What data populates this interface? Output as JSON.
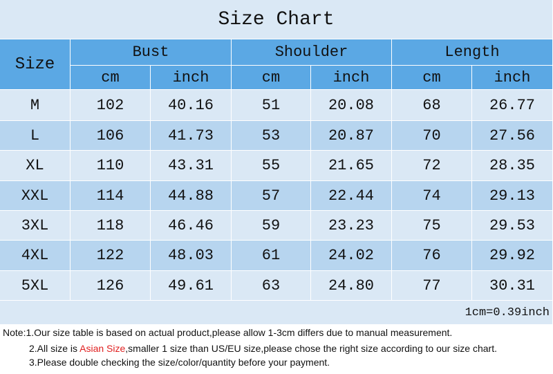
{
  "title": "Size Chart",
  "table": {
    "size_header": "Size",
    "groups": [
      "Bust",
      "Shoulder",
      "Length"
    ],
    "units": [
      "cm",
      "inch",
      "cm",
      "inch",
      "cm",
      "inch"
    ],
    "rows": [
      [
        "M",
        "102",
        "40.16",
        "51",
        "20.08",
        "68",
        "26.77"
      ],
      [
        "L",
        "106",
        "41.73",
        "53",
        "20.87",
        "70",
        "27.56"
      ],
      [
        "XL",
        "110",
        "43.31",
        "55",
        "21.65",
        "72",
        "28.35"
      ],
      [
        "XXL",
        "114",
        "44.88",
        "57",
        "22.44",
        "74",
        "29.13"
      ],
      [
        "3XL",
        "118",
        "46.46",
        "59",
        "23.23",
        "75",
        "29.53"
      ],
      [
        "4XL",
        "122",
        "48.03",
        "61",
        "24.02",
        "76",
        "29.92"
      ],
      [
        "5XL",
        "126",
        "49.61",
        "63",
        "24.80",
        "77",
        "30.31"
      ]
    ]
  },
  "conversion": "1cm=0.39inch",
  "notes": {
    "label": "Note:",
    "items": [
      {
        "before": "1.Our size table is based on actual product,please allow 1-3cm differs due to manual measurement."
      },
      {
        "before": "2.All size is ",
        "highlight": "Asian Size",
        "after": ",smaller 1 size than US/EU size,please chose the right size according to our size chart."
      },
      {
        "before": "3.Please double checking the size/color/quantity before your payment."
      }
    ]
  }
}
